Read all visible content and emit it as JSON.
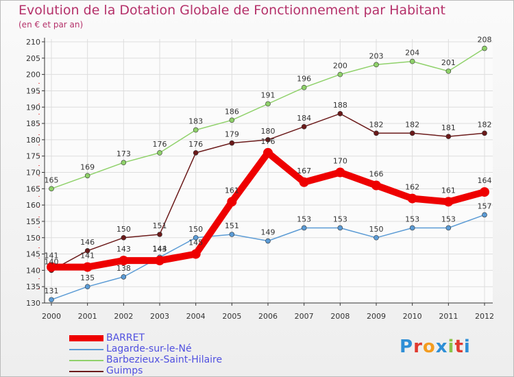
{
  "title": "Evolution de la Dotation Globale de Fonctionnement par Habitant",
  "subtitle": "(en € et par an)",
  "logo": "Proxiti",
  "colors": {
    "title": "#b5316a",
    "axis": "#333333",
    "grid": "#dddddd",
    "legend_text": "#5050e0"
  },
  "chart_data": {
    "type": "line",
    "x": [
      "2000",
      "2001",
      "2002",
      "2003",
      "2004",
      "2005",
      "2006",
      "2007",
      "2008",
      "2009",
      "2010",
      "2011",
      "2012"
    ],
    "ylim": [
      130,
      210
    ],
    "yticks": [
      130,
      135,
      140,
      145,
      150,
      155,
      160,
      165,
      170,
      175,
      180,
      185,
      190,
      195,
      200,
      205,
      210
    ],
    "grid": true,
    "legend_position": "bottom-left",
    "series": [
      {
        "name": "BARRET",
        "color": "#ee0000",
        "values": [
          141,
          141,
          143,
          143,
          145,
          161,
          176,
          167,
          170,
          166,
          162,
          161,
          164
        ]
      },
      {
        "name": "Lagarde-sur-le-Né",
        "color": "#5b9bd5",
        "values": [
          131,
          135,
          138,
          144,
          150,
          151,
          149,
          153,
          153,
          150,
          153,
          153,
          157
        ]
      },
      {
        "name": "Barbezieux-Saint-Hilaire",
        "color": "#8fd16a",
        "values": [
          165,
          169,
          173,
          176,
          183,
          186,
          191,
          196,
          200,
          203,
          204,
          201,
          208
        ]
      },
      {
        "name": "Guimps",
        "color": "#6b1a1a",
        "values": [
          140,
          146,
          150,
          151,
          176,
          179,
          180,
          184,
          188,
          182,
          182,
          181,
          182
        ]
      }
    ]
  }
}
